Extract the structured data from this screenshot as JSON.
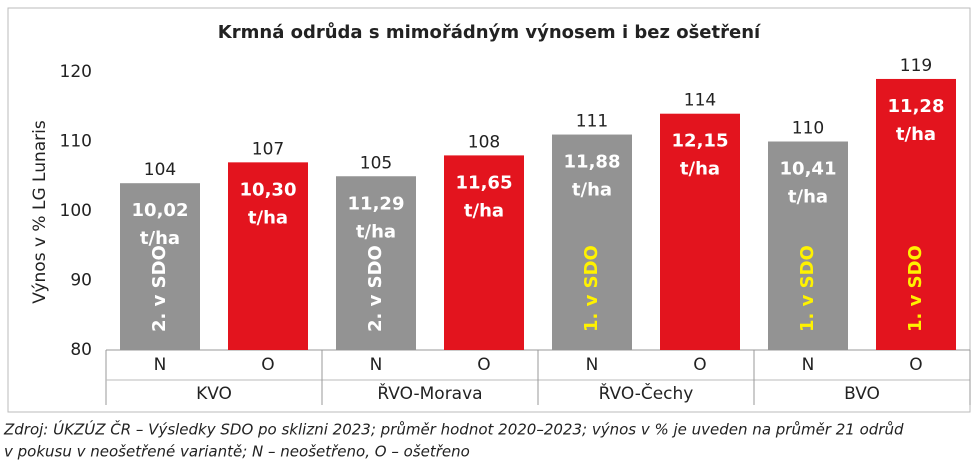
{
  "chart_data": {
    "type": "bar",
    "title": "Krmná odrůda s mimořádným výnosem i bez ošetření",
    "y_label": "Výnos v % LG Lunaris",
    "categories": [
      "N",
      "O",
      "N",
      "O",
      "N",
      "O",
      "N",
      "O"
    ],
    "groups": [
      "KVO",
      "ŘVO-Morava",
      "ŘVO-Čechy",
      "BVO"
    ],
    "values": [
      104,
      107,
      105,
      108,
      111,
      114,
      110,
      119
    ],
    "colors": [
      "#939393",
      "#e3141e",
      "#939393",
      "#e3141e",
      "#939393",
      "#e3141e",
      "#939393",
      "#e3141e"
    ],
    "yield_labels": [
      [
        "10,02",
        "t/ha"
      ],
      [
        "10,30",
        "t/ha"
      ],
      [
        "11,29",
        "t/ha"
      ],
      [
        "11,65",
        "t/ha"
      ],
      [
        "11,88",
        "t/ha"
      ],
      [
        "12,15",
        "t/ha"
      ],
      [
        "10,41",
        "t/ha"
      ],
      [
        "11,28",
        "t/ha"
      ]
    ],
    "rank_labels": [
      "2. v SDO",
      null,
      "2. v SDO",
      null,
      "1. v SDO",
      null,
      "1. v SDO",
      "1. v SDO"
    ],
    "rank_label_colors": [
      "#ffffff",
      null,
      "#ffffff",
      null,
      "#fff200",
      null,
      "#fff200",
      "#fff200"
    ],
    "ylim": [
      80,
      120
    ],
    "yticks": [
      80,
      90,
      100,
      110,
      120
    ],
    "source": [
      "Zdroj: ÚKZÚZ ČR – Výsledky SDO po sklizni 2023; průměr hodnot 2020–2023; výnos v % je uveden na průměr 21 odrůd",
      "v pokusu v neošetřené variantě; N – neošetřeno, O – ošetřeno"
    ]
  }
}
